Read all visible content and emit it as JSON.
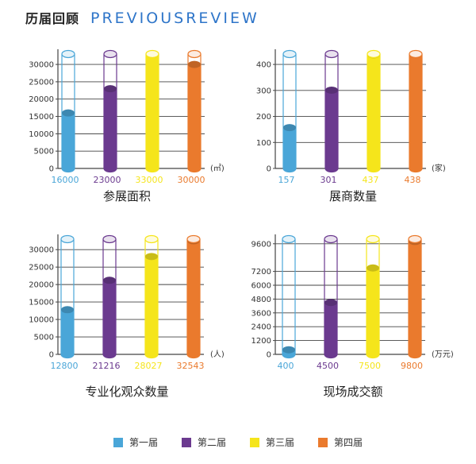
{
  "header": {
    "title_cn": "历届回顾",
    "title_en": "PREVIOUSREVIEW"
  },
  "colors": [
    "#4aa6d8",
    "#6b3a8f",
    "#f5e51b",
    "#ea7a2d"
  ],
  "legend": [
    "第一届",
    "第二届",
    "第三届",
    "第四届"
  ],
  "chart_data": [
    {
      "type": "bar",
      "title": "参展面积",
      "unit": "(㎡)",
      "ylim": [
        0,
        33000
      ],
      "yticks": [
        0,
        5000,
        10000,
        15000,
        20000,
        25000,
        30000
      ],
      "categories": [
        "第一届",
        "第二届",
        "第三届",
        "第四届"
      ],
      "values": [
        16000,
        23000,
        33000,
        30000
      ],
      "value_labels": [
        "16000",
        "23000",
        "33000",
        "30000"
      ]
    },
    {
      "type": "bar",
      "title": "展商数量",
      "unit": "(家)",
      "ylim": [
        0,
        440
      ],
      "yticks": [
        0,
        100,
        200,
        300,
        400
      ],
      "categories": [
        "第一届",
        "第二届",
        "第三届",
        "第四届"
      ],
      "values": [
        157,
        301,
        437,
        438
      ],
      "value_labels": [
        "157",
        "301",
        "437",
        "438"
      ]
    },
    {
      "type": "bar",
      "title": "专业化观众数量",
      "unit": "(人)",
      "ylim": [
        0,
        33000
      ],
      "yticks": [
        0,
        5000,
        10000,
        15000,
        20000,
        25000,
        30000
      ],
      "categories": [
        "第一届",
        "第二届",
        "第三届",
        "第四届"
      ],
      "values": [
        12800,
        21216,
        28027,
        32543
      ],
      "value_labels": [
        "12800",
        "21216",
        "28027",
        "32543"
      ]
    },
    {
      "type": "bar",
      "title": "现场成交额",
      "unit": "(万元)",
      "ylim": [
        0,
        10000
      ],
      "yticks": [
        0,
        1200,
        2400,
        3600,
        4800,
        6000,
        7200,
        9600
      ],
      "categories": [
        "第一届",
        "第二届",
        "第三届",
        "第四届"
      ],
      "values": [
        400,
        4500,
        7500,
        9800
      ],
      "value_labels": [
        "400",
        "4500",
        "7500",
        "9800"
      ]
    }
  ]
}
